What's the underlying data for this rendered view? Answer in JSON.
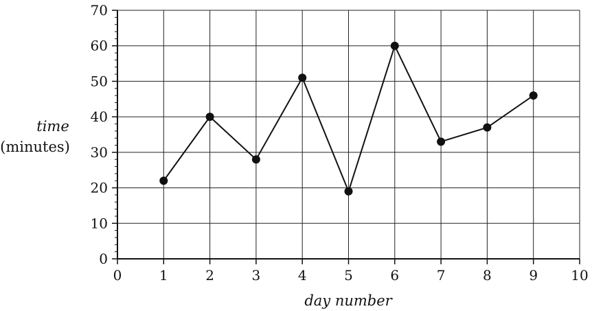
{
  "chart_data": {
    "type": "line",
    "title": "",
    "xlabel": "day number",
    "ylabel": "time",
    "ylabel_unit": "(minutes)",
    "x": [
      1,
      2,
      3,
      4,
      5,
      6,
      7,
      8,
      9
    ],
    "series": [
      {
        "values": [
          22,
          40,
          28,
          51,
          19,
          60,
          33,
          37,
          46
        ]
      }
    ],
    "xlim": [
      0,
      10
    ],
    "ylim": [
      0,
      70
    ],
    "xticks": [
      0,
      1,
      2,
      3,
      4,
      5,
      6,
      7,
      8,
      9,
      10
    ],
    "yticks": [
      0,
      10,
      20,
      30,
      40,
      50,
      60,
      70
    ],
    "y_minor_step": 2,
    "grid": true,
    "markers": "filled-circle",
    "line_color": "#111111"
  }
}
